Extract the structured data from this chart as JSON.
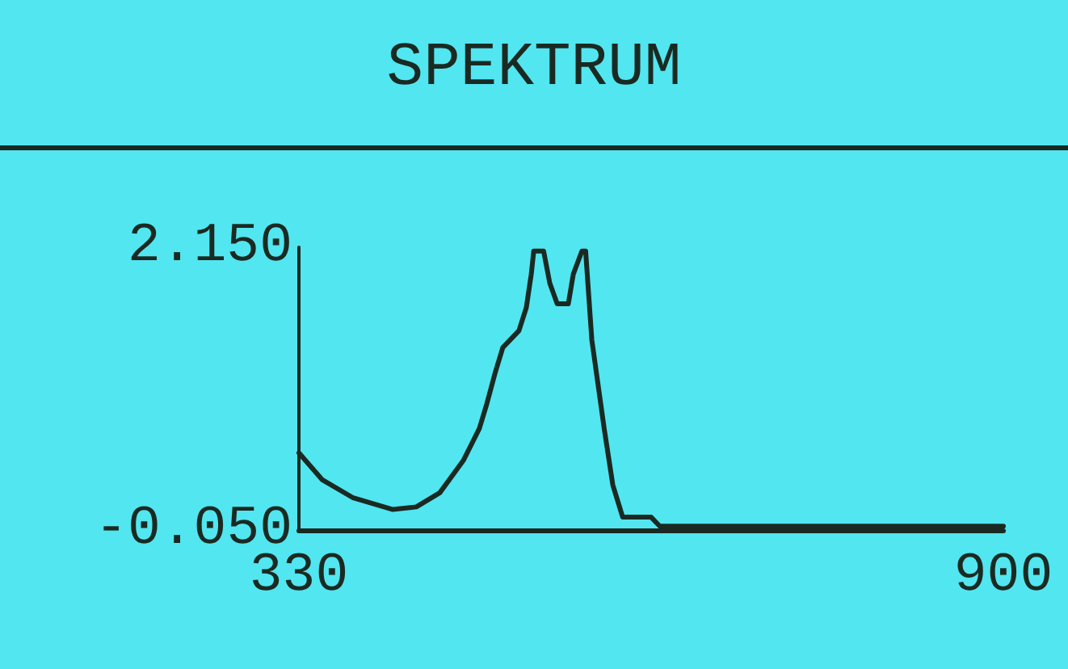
{
  "chart_data": {
    "type": "line",
    "title": "SPEKTRUM",
    "x": [
      330,
      349,
      374,
      406,
      425,
      444,
      463,
      476,
      482,
      489,
      495,
      508,
      514,
      518,
      520,
      528,
      533,
      539,
      548,
      552,
      559,
      562,
      567,
      577,
      584,
      592,
      615,
      622,
      900
    ],
    "series": [
      {
        "color": "#1a2a22",
        "values": [
          0.55,
          0.34,
          0.2,
          0.11,
          0.13,
          0.24,
          0.49,
          0.74,
          0.93,
          1.18,
          1.37,
          1.5,
          1.68,
          1.94,
          2.12,
          2.12,
          1.87,
          1.71,
          1.71,
          1.94,
          2.12,
          2.12,
          1.43,
          0.74,
          0.3,
          0.05,
          0.05,
          -0.02,
          -0.02
        ]
      }
    ],
    "xlim": [
      330,
      900
    ],
    "xticks": [
      330,
      900
    ],
    "ylim": [
      -0.05,
      2.15
    ],
    "yticks": [
      {
        "value": 2.15,
        "label": "2.150"
      },
      {
        "value": -0.05,
        "label": "-0.050"
      }
    ],
    "marker": "none",
    "line_style": "solid"
  }
}
